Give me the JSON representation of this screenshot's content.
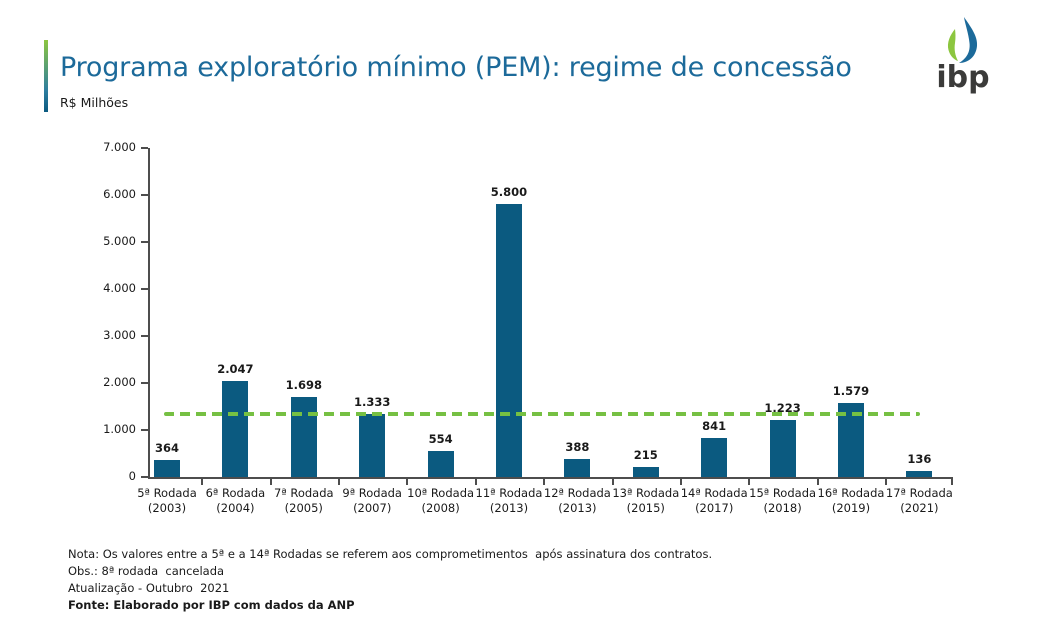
{
  "header": {
    "title": "Programa exploratório mínimo (PEM): regime de concessão",
    "subtitle": "R$ Milhões"
  },
  "logo": {
    "text": "ibp"
  },
  "chart_data": {
    "type": "bar",
    "title": "Programa exploratório mínimo (PEM): regime de concessão",
    "ylabel": "R$ Milhões",
    "xlabel": "",
    "ylim": [
      0,
      7000
    ],
    "grid": false,
    "legend": "none",
    "bar_color": "#0B5A80",
    "categories": [
      {
        "round": "5ª Rodada",
        "year": "(2003)"
      },
      {
        "round": "6ª Rodada",
        "year": "(2004)"
      },
      {
        "round": "7ª Rodada",
        "year": "(2005)"
      },
      {
        "round": "9ª Rodada",
        "year": "(2007)"
      },
      {
        "round": "10ª Rodada",
        "year": "(2008)"
      },
      {
        "round": "11ª Rodada",
        "year": "(2013)"
      },
      {
        "round": "12ª Rodada",
        "year": "(2013)"
      },
      {
        "round": "13ª Rodada",
        "year": "(2015)"
      },
      {
        "round": "14ª Rodada",
        "year": "(2017)"
      },
      {
        "round": "15ª Rodada",
        "year": "(2018)"
      },
      {
        "round": "16ª Rodada",
        "year": "(2019)"
      },
      {
        "round": "17ª Rodada",
        "year": "(2021)"
      }
    ],
    "values": [
      364,
      2047,
      1698,
      1333,
      554,
      5800,
      388,
      215,
      841,
      1223,
      1579,
      136
    ],
    "value_labels": [
      "364",
      "2.047",
      "1.698",
      "1.333",
      "554",
      "5.800",
      "388",
      "215",
      "841",
      "1.223",
      "1.579",
      "136"
    ],
    "y_axis": {
      "ticks": [
        {
          "value": 0,
          "label": "0"
        },
        {
          "value": 1000,
          "label": "1.000"
        },
        {
          "value": 2000,
          "label": "2.000"
        },
        {
          "value": 3000,
          "label": "3.000"
        },
        {
          "value": 4000,
          "label": "4.000"
        },
        {
          "value": 5000,
          "label": "5.000"
        },
        {
          "value": 6000,
          "label": "6.000"
        },
        {
          "value": 7000,
          "label": "7.000"
        }
      ]
    },
    "average_line": {
      "value": 1348,
      "style": "dashed",
      "color": "#76C043"
    }
  },
  "notes": {
    "lines": [
      "Nota: Os valores entre a 5ª e a 14ª Rodadas se referem aos comprometimentos  após assinatura dos contratos.",
      "Obs.: 8ª rodada  cancelada",
      "Atualização - Outubro  2021",
      "Fonte: Elaborado por IBP com dados da ANP"
    ]
  },
  "colors": {
    "brand_blue": "#1C6A9A",
    "bar": "#0B5A80",
    "dash_green": "#76C043",
    "accent_green": "#8CC63F",
    "axis": "#4D4D4D",
    "text": "#1A1A1A",
    "logo_gray": "#3B3B3A"
  }
}
